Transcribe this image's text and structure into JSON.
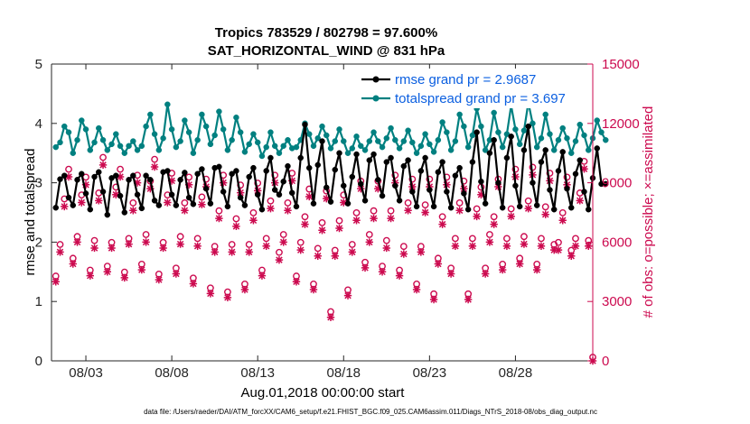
{
  "chart_data": {
    "type": "line",
    "title": "Tropics 783529 / 802798 = 97.600%",
    "subtitle": "SAT_HORIZONTAL_WIND @ 831 hPa",
    "xlabel": "Aug.01,2018 00:00:00 start",
    "ylabel_left": "rmse and totalspread",
    "ylabel_right": "# of obs: o=possible; ×=assimilated",
    "footer": "data file: /Users/raeder/DAI/ATM_forcXX/CAM6_setup/f.e21.FHIST_BGC.f09_025.CAM6assim.011/Diags_NTrS_2018-08/obs_diag_output.nc",
    "x_range_days": [
      0,
      31.5
    ],
    "x_ticks": [
      "08/03",
      "08/08",
      "08/13",
      "08/18",
      "08/23",
      "08/28"
    ],
    "x_tick_days": [
      2,
      7,
      12,
      17,
      22,
      27
    ],
    "ylim_left": [
      0,
      5
    ],
    "yticks_left": [
      "0",
      "1",
      "2",
      "3",
      "4",
      "5"
    ],
    "ylim_right": [
      0,
      15000
    ],
    "yticks_right": [
      "0",
      "3000",
      "6000",
      "9000",
      "12000",
      "15000"
    ],
    "samples_per_day": 4,
    "series": [
      {
        "name": "rmse grand pr = 2.9687",
        "color": "#000000",
        "axis": "left",
        "values": [
          2.58,
          3.06,
          3.12,
          2.75,
          2.62,
          3.05,
          3.15,
          2.82,
          2.55,
          3.1,
          3.18,
          2.85,
          2.46,
          3.08,
          3.12,
          2.78,
          2.5,
          3.05,
          3.12,
          2.8,
          2.57,
          3.12,
          3.05,
          2.7,
          2.62,
          3.18,
          3.2,
          2.8,
          2.62,
          3.05,
          3.17,
          2.75,
          2.64,
          3.15,
          3.23,
          2.9,
          2.65,
          3.25,
          3.27,
          2.85,
          2.6,
          3.15,
          3.2,
          2.75,
          2.62,
          3.1,
          3.25,
          2.8,
          2.55,
          3.2,
          3.42,
          2.88,
          2.8,
          3.02,
          3.28,
          2.83,
          2.6,
          3.42,
          3.98,
          3.25,
          2.65,
          3.3,
          3.7,
          2.92,
          2.68,
          3.22,
          3.5,
          2.95,
          2.65,
          3.1,
          3.48,
          2.98,
          2.7,
          3.38,
          3.48,
          3.05,
          2.78,
          3.35,
          3.42,
          2.95,
          2.7,
          3.28,
          3.38,
          2.85,
          2.6,
          3.2,
          3.42,
          2.88,
          2.6,
          3.18,
          3.35,
          2.85,
          2.58,
          3.12,
          3.25,
          2.82,
          2.55,
          3.35,
          3.85,
          3.02,
          2.65,
          3.5,
          3.72,
          3.0,
          2.58,
          3.42,
          3.78,
          2.95,
          2.6,
          3.55,
          3.95,
          3.0,
          2.62,
          3.35,
          3.55,
          2.88,
          2.55,
          3.2,
          3.52,
          2.9,
          2.58,
          3.15,
          3.38,
          2.85,
          2.55,
          3.08,
          3.58,
          2.98,
          2.98
        ]
      },
      {
        "name": "totalspread grand pr = 3.697",
        "color": "#008080",
        "axis": "left",
        "values": [
          3.6,
          3.68,
          3.95,
          3.85,
          3.5,
          3.72,
          4.05,
          3.9,
          3.55,
          3.68,
          3.92,
          3.72,
          3.55,
          3.65,
          3.82,
          3.62,
          3.5,
          3.62,
          3.7,
          3.55,
          3.62,
          3.95,
          4.15,
          3.82,
          3.55,
          3.75,
          4.32,
          3.9,
          3.6,
          3.7,
          4.05,
          3.85,
          3.5,
          3.72,
          4.15,
          3.95,
          3.65,
          3.8,
          4.2,
          3.9,
          3.55,
          3.72,
          4.1,
          3.85,
          3.52,
          3.65,
          3.82,
          3.68,
          3.45,
          3.6,
          3.85,
          3.62,
          3.5,
          3.62,
          3.72,
          3.58,
          3.6,
          3.72,
          4.0,
          3.82,
          3.62,
          3.75,
          3.95,
          3.8,
          3.58,
          3.7,
          3.9,
          3.7,
          3.5,
          3.58,
          3.78,
          3.62,
          3.55,
          3.7,
          3.85,
          3.7,
          3.6,
          3.75,
          3.92,
          3.72,
          3.58,
          3.7,
          3.88,
          3.68,
          3.5,
          3.62,
          3.82,
          3.65,
          3.52,
          3.72,
          4.02,
          3.85,
          3.55,
          3.7,
          4.15,
          3.95,
          3.6,
          3.8,
          4.25,
          3.95,
          3.55,
          3.72,
          4.18,
          3.85,
          3.6,
          3.82,
          4.3,
          3.9,
          3.65,
          3.88,
          4.35,
          4.0,
          3.6,
          3.75,
          4.15,
          3.82,
          3.55,
          3.72,
          3.92,
          3.75,
          3.5,
          3.7,
          3.98,
          3.8,
          3.55,
          3.75,
          4.05,
          3.85,
          3.72
        ]
      },
      {
        "name": "# obs possible",
        "color": "#cc0a4f",
        "axis": "right",
        "marker": "o",
        "values": [
          4100,
          5700,
          8000,
          9500,
          5000,
          6100,
          8200,
          9100,
          4400,
          5900,
          8300,
          10100,
          4600,
          5800,
          8600,
          9500,
          4300,
          6000,
          7800,
          9200,
          4700,
          6200,
          8900,
          10000,
          4200,
          5800,
          8200,
          9300,
          4500,
          6100,
          7800,
          9100,
          4000,
          6000,
          8100,
          9000,
          3500,
          5600,
          7400,
          9200,
          3300,
          5700,
          7000,
          8700,
          3700,
          5700,
          7300,
          8800,
          4400,
          6000,
          7900,
          9200,
          5300,
          6200,
          7800,
          9300,
          4100,
          5800,
          7100,
          8500,
          3700,
          5500,
          6800,
          8400,
          2300,
          5400,
          6900,
          8200,
          3400,
          5700,
          7300,
          8900,
          4800,
          6200,
          7400,
          8900,
          4600,
          5900,
          7400,
          9200,
          4400,
          5600,
          7800,
          9000,
          3700,
          5600,
          7700,
          9000,
          3200,
          5000,
          7100,
          9100,
          4500,
          6000,
          7800,
          8900,
          3200,
          6000,
          7500,
          8600,
          4500,
          6200,
          7100,
          9000,
          4700,
          6000,
          7500,
          9500,
          5000,
          6100,
          7900,
          9600,
          4700,
          6000,
          7600,
          9300,
          5700,
          5800,
          7300,
          9100,
          5400,
          6000,
          8300,
          9900,
          5900,
          0
        ]
      },
      {
        "name": "# obs assimilated",
        "color": "#cc0a4f",
        "axis": "right",
        "marker": "x",
        "values": [
          4000,
          5500,
          7800,
          9300,
          4900,
          6000,
          8000,
          8900,
          4300,
          5700,
          8100,
          9900,
          4500,
          5700,
          8400,
          9300,
          4200,
          5900,
          7600,
          9000,
          4600,
          6000,
          8700,
          9800,
          4100,
          5700,
          8000,
          9100,
          4400,
          5900,
          7600,
          8900,
          3900,
          5800,
          7900,
          8800,
          3400,
          5500,
          7200,
          9000,
          3200,
          5500,
          6800,
          8500,
          3600,
          5500,
          7100,
          8600,
          4300,
          5800,
          7700,
          9000,
          5100,
          6000,
          7600,
          9100,
          4000,
          5600,
          6900,
          8300,
          3600,
          5300,
          6600,
          8200,
          2200,
          5300,
          6700,
          8000,
          3300,
          5500,
          7100,
          8700,
          4700,
          6000,
          7200,
          8700,
          4500,
          5700,
          7200,
          9000,
          4300,
          5400,
          7600,
          8800,
          3600,
          5500,
          7500,
          8800,
          3100,
          4900,
          6900,
          8900,
          4400,
          5800,
          7600,
          8700,
          3100,
          5800,
          7300,
          8400,
          4400,
          6000,
          6900,
          8800,
          4600,
          5800,
          7300,
          9300,
          4900,
          5900,
          7700,
          9400,
          4600,
          5800,
          7400,
          9100,
          5600,
          5600,
          7100,
          8900,
          5300,
          5800,
          8100,
          9700,
          5800,
          0
        ]
      }
    ]
  }
}
